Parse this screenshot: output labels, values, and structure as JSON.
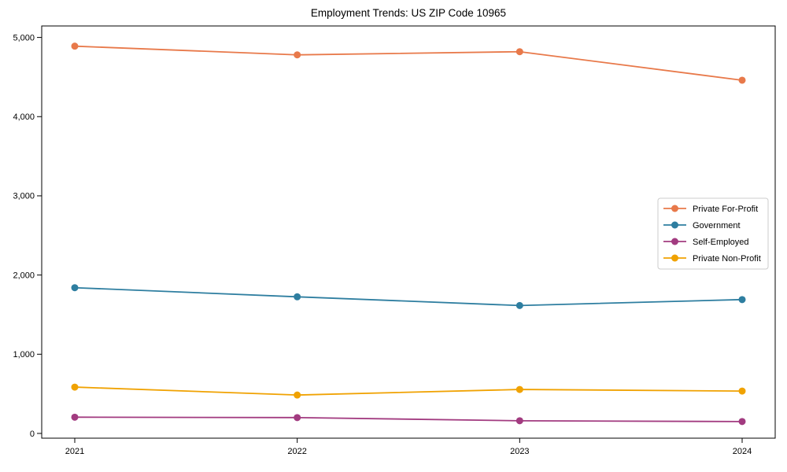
{
  "window": {
    "background_color": "#ffffff"
  },
  "chart_data": {
    "type": "line",
    "title": "Employment Trends: US ZIP Code 10965",
    "xlabel": "",
    "ylabel": "",
    "x": [
      "2021",
      "2022",
      "2023",
      "2024"
    ],
    "series": [
      {
        "name": "Private For-Profit",
        "color": "#E8794A",
        "values": [
          4890,
          4780,
          4820,
          4460
        ]
      },
      {
        "name": "Government",
        "color": "#2E7EA0",
        "values": [
          1840,
          1725,
          1615,
          1690
        ]
      },
      {
        "name": "Self-Employed",
        "color": "#A23B80",
        "values": [
          205,
          200,
          160,
          150
        ]
      },
      {
        "name": "Private Non-Profit",
        "color": "#F0A202",
        "values": [
          585,
          485,
          555,
          535
        ]
      }
    ],
    "yticks": [
      0,
      1000,
      2000,
      3000,
      4000,
      5000
    ],
    "ytick_labels": [
      "0",
      "1,000",
      "2,000",
      "3,000",
      "4,000",
      "5,000"
    ],
    "ylim": [
      -60,
      5145
    ],
    "grid": false,
    "legend_position": "center-right",
    "axis_color": "#000000",
    "legend_border_color": "#cccccc",
    "legend_background": "#ffffff",
    "marker": "circle",
    "marker_radius": 4.5,
    "line_width": 1.8
  }
}
